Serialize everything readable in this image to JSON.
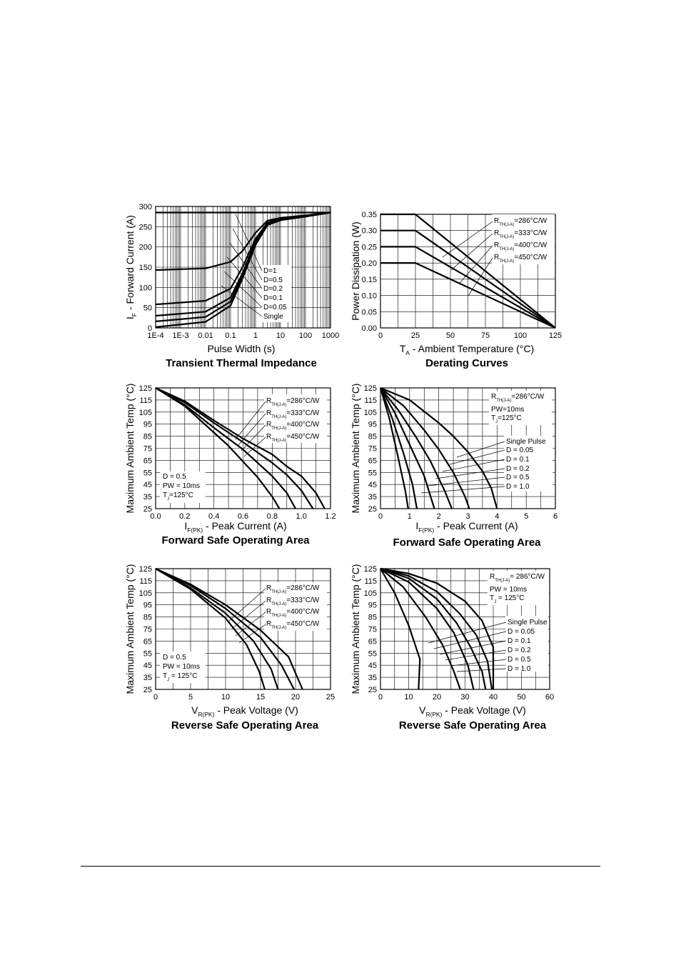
{
  "chart_data": [
    {
      "type": "line",
      "title": "Transient Thermal Impedance",
      "xlabel": "Pulse Width (s)",
      "ylabel": "I - Forward Current (A)",
      "ylabel_sub": "F",
      "xscale": "log",
      "xlim": [
        0.0001,
        1000
      ],
      "ylim": [
        0,
        300
      ],
      "xticks": [
        0.0001,
        0.001,
        0.01,
        0.1,
        1,
        10,
        100,
        1000
      ],
      "xtick_labels": [
        "1E-4",
        "1E-3",
        "0.01",
        "0.1",
        "1",
        "10",
        "100",
        "1000"
      ],
      "yticks": [
        0,
        50,
        100,
        150,
        200,
        250,
        300
      ],
      "ytick_labels": [
        "0",
        "50",
        "100",
        "150",
        "200",
        "250",
        "300"
      ],
      "grid": true,
      "annotations": [
        "D=1",
        "D=0.5",
        "D=0.2",
        "D=0.1",
        "D=0.05",
        "Single"
      ],
      "series": [
        {
          "name": "D=1",
          "x": [
            0.0001,
            1000
          ],
          "y": [
            285,
            285
          ]
        },
        {
          "name": "D=0.5",
          "x": [
            0.0001,
            0.01,
            0.1,
            0.3,
            1,
            3,
            10,
            100,
            1000
          ],
          "y": [
            143,
            147,
            163,
            190,
            235,
            265,
            272,
            278,
            285
          ]
        },
        {
          "name": "D=0.2",
          "x": [
            0.0001,
            0.01,
            0.1,
            0.3,
            1,
            3,
            10,
            100,
            1000
          ],
          "y": [
            58,
            67,
            97,
            150,
            220,
            260,
            270,
            277,
            285
          ]
        },
        {
          "name": "D=0.1",
          "x": [
            0.0001,
            0.01,
            0.1,
            0.3,
            1,
            3,
            10,
            100,
            1000
          ],
          "y": [
            30,
            40,
            75,
            135,
            213,
            258,
            268,
            276,
            285
          ]
        },
        {
          "name": "D=0.05",
          "x": [
            0.0001,
            0.01,
            0.1,
            0.3,
            1,
            3,
            10,
            100,
            1000
          ],
          "y": [
            16,
            27,
            65,
            128,
            210,
            256,
            267,
            275,
            285
          ]
        },
        {
          "name": "Single",
          "x": [
            0.0001,
            0.01,
            0.1,
            0.3,
            1,
            3,
            10,
            100,
            1000
          ],
          "y": [
            2,
            15,
            55,
            122,
            205,
            254,
            266,
            275,
            285
          ]
        }
      ]
    },
    {
      "type": "line",
      "title": "Derating Curves",
      "xlabel": "T - Ambient Temperature (°C)",
      "xlabel_sub": "A",
      "ylabel": "Power Dissipation (W)",
      "xlim": [
        0,
        125
      ],
      "ylim": [
        0,
        0.35
      ],
      "xticks": [
        0,
        25,
        50,
        75,
        100,
        125
      ],
      "xtick_labels": [
        "0",
        "25",
        "50",
        "75",
        "100",
        "125"
      ],
      "yticks": [
        0,
        0.05,
        0.1,
        0.15,
        0.2,
        0.25,
        0.3,
        0.35
      ],
      "ytick_labels": [
        "0.00",
        "0.05",
        "0.10",
        "0.15",
        "0.20",
        "0.25",
        "0.30",
        "0.35"
      ],
      "grid": true,
      "legend": [
        "R TH(J-A)=286°C/W",
        "R TH(J-A)=333°C/W",
        "R TH(J-A)=400°C/W",
        "R TH(J-A)=450°C/W"
      ],
      "series": [
        {
          "name": "R TH(J-A)=286°C/W",
          "x": [
            0,
            25,
            125
          ],
          "y": [
            0.35,
            0.35,
            0
          ]
        },
        {
          "name": "R TH(J-A)=333°C/W",
          "x": [
            0,
            25,
            125
          ],
          "y": [
            0.3,
            0.3,
            0
          ]
        },
        {
          "name": "R TH(J-A)=400°C/W",
          "x": [
            0,
            25,
            125
          ],
          "y": [
            0.25,
            0.25,
            0
          ]
        },
        {
          "name": "R TH(J-A)=450°C/W",
          "x": [
            0,
            25,
            125
          ],
          "y": [
            0.2,
            0.2,
            0
          ]
        }
      ]
    },
    {
      "type": "line",
      "title": "Forward Safe Operating Area",
      "xlabel": "I - Peak Current (A)",
      "xlabel_sub": "F(PK)",
      "ylabel": "Maximum Ambient Temp (°C)",
      "xlim": [
        0,
        1.2
      ],
      "ylim": [
        25,
        125
      ],
      "xticks": [
        0,
        0.2,
        0.4,
        0.6,
        0.8,
        1.0,
        1.2
      ],
      "xtick_labels": [
        "0.0",
        "0.2",
        "0.4",
        "0.6",
        "0.8",
        "1.0",
        "1.2"
      ],
      "yticks": [
        25,
        35,
        45,
        55,
        65,
        75,
        85,
        95,
        105,
        115,
        125
      ],
      "ytick_labels": [
        "25",
        "35",
        "45",
        "55",
        "65",
        "75",
        "85",
        "95",
        "105",
        "115",
        "125"
      ],
      "grid": true,
      "legend": [
        "R TH(J-A)=286°C/W",
        "R TH(J-A)=333°C/W",
        "R TH(J-A)=400°C/W",
        "R TH(J-A)=450°C/W"
      ],
      "conditions": [
        "D = 0.5",
        "PW = 10ms",
        "T J=125°C"
      ],
      "series": [
        {
          "name": "R TH(J-A)=286°C/W",
          "x": [
            0,
            0.2,
            0.4,
            0.6,
            0.8,
            0.9,
            1.0,
            1.1,
            1.16
          ],
          "y": [
            125,
            114,
            98,
            83,
            70,
            60,
            52,
            38,
            25
          ]
        },
        {
          "name": "R TH(J-A)=333°C/W",
          "x": [
            0,
            0.2,
            0.4,
            0.6,
            0.8,
            0.9,
            1.0,
            1.08
          ],
          "y": [
            125,
            113,
            96,
            80,
            63,
            53,
            40,
            25
          ]
        },
        {
          "name": "R TH(J-A)=400°C/W",
          "x": [
            0,
            0.2,
            0.4,
            0.6,
            0.7,
            0.8,
            0.9,
            0.96
          ],
          "y": [
            125,
            111,
            92,
            74,
            63,
            52,
            38,
            25
          ]
        },
        {
          "name": "R TH(J-A)=450°C/W",
          "x": [
            0,
            0.2,
            0.4,
            0.5,
            0.6,
            0.7,
            0.8,
            0.85
          ],
          "y": [
            125,
            110,
            88,
            77,
            64,
            51,
            35,
            25
          ]
        }
      ]
    },
    {
      "type": "line",
      "title": "Forward Safe Operating Area",
      "xlabel": "I - Peak Current (A)",
      "xlabel_sub": "F(PK)",
      "ylabel": "Maximum Ambient Temp (°C)",
      "xlim": [
        0,
        6
      ],
      "ylim": [
        25,
        125
      ],
      "xticks": [
        0,
        1,
        2,
        3,
        4,
        5,
        6
      ],
      "xtick_labels": [
        "0",
        "1",
        "2",
        "3",
        "4",
        "5",
        "6"
      ],
      "yticks": [
        25,
        35,
        45,
        55,
        65,
        75,
        85,
        95,
        105,
        115,
        125
      ],
      "ytick_labels": [
        "25",
        "35",
        "45",
        "55",
        "65",
        "75",
        "85",
        "95",
        "105",
        "115",
        "125"
      ],
      "grid": true,
      "legend": [
        "Single Pulse",
        "D = 0.05",
        "D = 0.1",
        "D = 0.2",
        "D = 0.5",
        "D = 1.0"
      ],
      "conditions": [
        "R TH(J-A)=286°C/W",
        "PW=10ms",
        "T J=125°C"
      ],
      "series": [
        {
          "name": "Single Pulse",
          "x": [
            0,
            1,
            2,
            2.5,
            3,
            3.5,
            3.8,
            4.0
          ],
          "y": [
            125,
            115,
            96,
            85,
            72,
            56,
            42,
            25
          ]
        },
        {
          "name": "D = 0.05",
          "x": [
            0,
            0.8,
            1.5,
            2.0,
            2.5,
            2.9,
            3.05
          ],
          "y": [
            125,
            110,
            90,
            74,
            55,
            35,
            25
          ]
        },
        {
          "name": "D = 0.1",
          "x": [
            0,
            0.6,
            1.2,
            1.7,
            2.2,
            2.45
          ],
          "y": [
            125,
            107,
            85,
            65,
            40,
            25
          ]
        },
        {
          "name": "D = 0.2",
          "x": [
            0,
            0.5,
            1.0,
            1.5,
            1.85
          ],
          "y": [
            125,
            104,
            78,
            52,
            25
          ]
        },
        {
          "name": "D = 0.5",
          "x": [
            0,
            0.4,
            0.8,
            1.1,
            1.25
          ],
          "y": [
            125,
            100,
            70,
            45,
            25
          ]
        },
        {
          "name": "D = 1.0",
          "x": [
            0,
            0.3,
            0.6,
            0.85,
            0.95
          ],
          "y": [
            125,
            100,
            68,
            40,
            25
          ]
        }
      ]
    },
    {
      "type": "line",
      "title": "Reverse Safe Operating Area",
      "xlabel": "V - Peak Voltage (V)",
      "xlabel_sub": "R(PK)",
      "ylabel": "Maximum Ambient Temp (°C)",
      "xlim": [
        0,
        25
      ],
      "ylim": [
        25,
        125
      ],
      "xticks": [
        0,
        5,
        10,
        15,
        20,
        25
      ],
      "xtick_labels": [
        "0",
        "5",
        "10",
        "15",
        "20",
        "25"
      ],
      "yticks": [
        25,
        35,
        45,
        55,
        65,
        75,
        85,
        95,
        105,
        115,
        125
      ],
      "ytick_labels": [
        "25",
        "35",
        "45",
        "55",
        "65",
        "75",
        "85",
        "95",
        "105",
        "115",
        "125"
      ],
      "grid": true,
      "legend": [
        "R TH(J-A)=286°C/W",
        "R TH(J-A)=333°C/W",
        "R TH(J-A)=400°C/W",
        "R TH(J-A)=450°C/W"
      ],
      "conditions": [
        "D = 0.5",
        "PW = 10ms",
        "T J = 125°C"
      ],
      "series": [
        {
          "name": "R TH(J-A)=286°C/W",
          "x": [
            0,
            5,
            10,
            15,
            19,
            21
          ],
          "y": [
            125,
            112,
            95,
            74,
            52,
            25
          ]
        },
        {
          "name": "R TH(J-A)=333°C/W",
          "x": [
            0,
            5,
            10,
            15,
            18,
            19.8
          ],
          "y": [
            125,
            111,
            92,
            68,
            45,
            25
          ]
        },
        {
          "name": "R TH(J-A)=400°C/W",
          "x": [
            0,
            5,
            10,
            14,
            16.5,
            17.5
          ],
          "y": [
            125,
            109,
            88,
            65,
            42,
            25
          ]
        },
        {
          "name": "R TH(J-A)=450°C/W",
          "x": [
            0,
            5,
            10,
            13,
            14.8,
            15.6
          ],
          "y": [
            125,
            108,
            84,
            62,
            40,
            25
          ]
        }
      ]
    },
    {
      "type": "line",
      "title": "Reverse Safe Operating Area",
      "xlabel": "V - Peak Voltage (V)",
      "xlabel_sub": "R(PK)",
      "ylabel": "Maximum Ambient Temp (°C)",
      "xlim": [
        0,
        60
      ],
      "ylim": [
        25,
        125
      ],
      "xticks": [
        0,
        10,
        20,
        30,
        40,
        50,
        60
      ],
      "xtick_labels": [
        "0",
        "10",
        "20",
        "30",
        "40",
        "50",
        "60"
      ],
      "yticks": [
        25,
        35,
        45,
        55,
        65,
        75,
        85,
        95,
        105,
        115,
        125
      ],
      "ytick_labels": [
        "25",
        "35",
        "45",
        "55",
        "65",
        "75",
        "85",
        "95",
        "105",
        "115",
        "125"
      ],
      "grid": true,
      "legend": [
        "Single Pulse",
        "D = 0.05",
        "D = 0.1",
        "D = 0.2",
        "D = 0.5",
        "D = 1.0"
      ],
      "conditions": [
        "R TH(J-A)= 286°C/W",
        "PW = 10ms",
        "T J = 125°C"
      ],
      "series": [
        {
          "name": "Single Pulse",
          "x": [
            0,
            10,
            20,
            30,
            36,
            40,
            40
          ],
          "y": [
            125,
            121,
            113,
            98,
            82,
            60,
            25
          ]
        },
        {
          "name": "D = 0.05",
          "x": [
            0,
            10,
            20,
            28,
            34,
            38,
            39.5
          ],
          "y": [
            125,
            119,
            106,
            88,
            70,
            48,
            25
          ]
        },
        {
          "name": "D = 0.1",
          "x": [
            0,
            10,
            20,
            27,
            32,
            36,
            37.3
          ],
          "y": [
            125,
            117,
            100,
            80,
            60,
            40,
            25
          ]
        },
        {
          "name": "D = 0.2",
          "x": [
            0,
            10,
            20,
            26,
            31,
            33
          ],
          "y": [
            125,
            114,
            92,
            72,
            45,
            25
          ]
        },
        {
          "name": "D = 0.5",
          "x": [
            0,
            8,
            16,
            22,
            26,
            28.3
          ],
          "y": [
            125,
            110,
            85,
            62,
            40,
            25
          ]
        },
        {
          "name": "D = 1.0",
          "x": [
            0,
            5,
            10,
            14,
            13.5
          ],
          "y": [
            125,
            105,
            78,
            50,
            25
          ]
        }
      ]
    }
  ]
}
